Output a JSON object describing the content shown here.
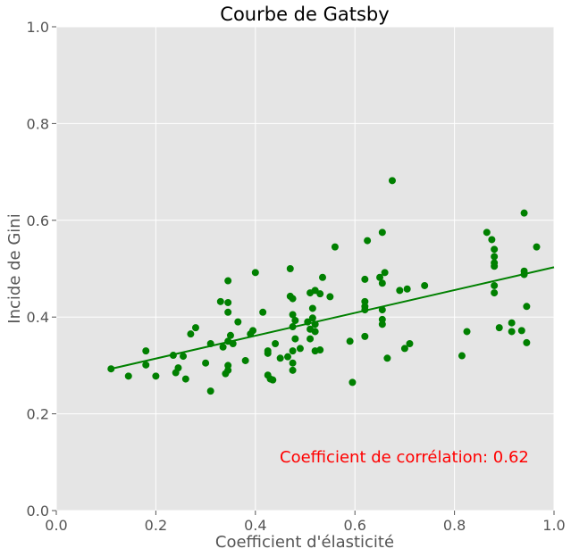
{
  "chart_data": {
    "type": "scatter",
    "title": "Courbe de Gatsby",
    "xlabel": "Coefficient d'élasticité",
    "ylabel": "Incide de Gini",
    "xlim": [
      0.0,
      1.0
    ],
    "ylim": [
      0.0,
      1.0
    ],
    "xticks": [
      "0.0",
      "0.2",
      "0.4",
      "0.6",
      "0.8",
      "1.0"
    ],
    "yticks": [
      "0.0",
      "0.2",
      "0.4",
      "0.6",
      "0.8",
      "1.0"
    ],
    "grid": true,
    "colors": {
      "background": "#e5e5e5",
      "grid": "#ffffff",
      "points": "#008000",
      "regression_line": "#008000",
      "annotation": "#ff0000"
    },
    "annotation": "Coefficient de corrélation: 0.62",
    "regression_line": {
      "x": [
        0.11,
        1.0
      ],
      "y": [
        0.293,
        0.503
      ]
    },
    "points": [
      [
        0.11,
        0.293
      ],
      [
        0.145,
        0.278
      ],
      [
        0.18,
        0.33
      ],
      [
        0.18,
        0.301
      ],
      [
        0.2,
        0.278
      ],
      [
        0.235,
        0.321
      ],
      [
        0.24,
        0.285
      ],
      [
        0.245,
        0.295
      ],
      [
        0.255,
        0.319
      ],
      [
        0.26,
        0.272
      ],
      [
        0.27,
        0.365
      ],
      [
        0.28,
        0.378
      ],
      [
        0.3,
        0.305
      ],
      [
        0.31,
        0.247
      ],
      [
        0.31,
        0.345
      ],
      [
        0.33,
        0.432
      ],
      [
        0.335,
        0.338
      ],
      [
        0.34,
        0.283
      ],
      [
        0.345,
        0.29
      ],
      [
        0.345,
        0.3
      ],
      [
        0.345,
        0.475
      ],
      [
        0.345,
        0.43
      ],
      [
        0.345,
        0.41
      ],
      [
        0.345,
        0.35
      ],
      [
        0.35,
        0.362
      ],
      [
        0.355,
        0.345
      ],
      [
        0.365,
        0.39
      ],
      [
        0.38,
        0.31
      ],
      [
        0.39,
        0.365
      ],
      [
        0.395,
        0.372
      ],
      [
        0.4,
        0.492
      ],
      [
        0.415,
        0.41
      ],
      [
        0.425,
        0.33
      ],
      [
        0.425,
        0.325
      ],
      [
        0.425,
        0.28
      ],
      [
        0.43,
        0.272
      ],
      [
        0.435,
        0.27
      ],
      [
        0.44,
        0.345
      ],
      [
        0.45,
        0.315
      ],
      [
        0.465,
        0.318
      ],
      [
        0.47,
        0.5
      ],
      [
        0.47,
        0.443
      ],
      [
        0.475,
        0.438
      ],
      [
        0.475,
        0.405
      ],
      [
        0.475,
        0.38
      ],
      [
        0.475,
        0.33
      ],
      [
        0.475,
        0.305
      ],
      [
        0.475,
        0.29
      ],
      [
        0.48,
        0.393
      ],
      [
        0.48,
        0.355
      ],
      [
        0.49,
        0.335
      ],
      [
        0.505,
        0.39
      ],
      [
        0.51,
        0.45
      ],
      [
        0.51,
        0.375
      ],
      [
        0.51,
        0.355
      ],
      [
        0.515,
        0.418
      ],
      [
        0.515,
        0.398
      ],
      [
        0.52,
        0.455
      ],
      [
        0.52,
        0.385
      ],
      [
        0.52,
        0.37
      ],
      [
        0.52,
        0.33
      ],
      [
        0.53,
        0.448
      ],
      [
        0.53,
        0.332
      ],
      [
        0.535,
        0.482
      ],
      [
        0.55,
        0.442
      ],
      [
        0.56,
        0.545
      ],
      [
        0.59,
        0.35
      ],
      [
        0.595,
        0.265
      ],
      [
        0.62,
        0.478
      ],
      [
        0.62,
        0.432
      ],
      [
        0.62,
        0.422
      ],
      [
        0.62,
        0.415
      ],
      [
        0.62,
        0.36
      ],
      [
        0.625,
        0.558
      ],
      [
        0.65,
        0.482
      ],
      [
        0.655,
        0.575
      ],
      [
        0.655,
        0.47
      ],
      [
        0.655,
        0.415
      ],
      [
        0.655,
        0.395
      ],
      [
        0.655,
        0.385
      ],
      [
        0.66,
        0.492
      ],
      [
        0.665,
        0.315
      ],
      [
        0.675,
        0.682
      ],
      [
        0.69,
        0.455
      ],
      [
        0.7,
        0.335
      ],
      [
        0.705,
        0.458
      ],
      [
        0.71,
        0.345
      ],
      [
        0.74,
        0.465
      ],
      [
        0.815,
        0.32
      ],
      [
        0.825,
        0.37
      ],
      [
        0.865,
        0.575
      ],
      [
        0.875,
        0.56
      ],
      [
        0.88,
        0.54
      ],
      [
        0.88,
        0.525
      ],
      [
        0.88,
        0.512
      ],
      [
        0.88,
        0.505
      ],
      [
        0.88,
        0.465
      ],
      [
        0.88,
        0.45
      ],
      [
        0.89,
        0.378
      ],
      [
        0.915,
        0.388
      ],
      [
        0.915,
        0.37
      ],
      [
        0.935,
        0.372
      ],
      [
        0.94,
        0.615
      ],
      [
        0.94,
        0.495
      ],
      [
        0.94,
        0.488
      ],
      [
        0.945,
        0.422
      ],
      [
        0.945,
        0.347
      ],
      [
        0.965,
        0.545
      ]
    ]
  }
}
